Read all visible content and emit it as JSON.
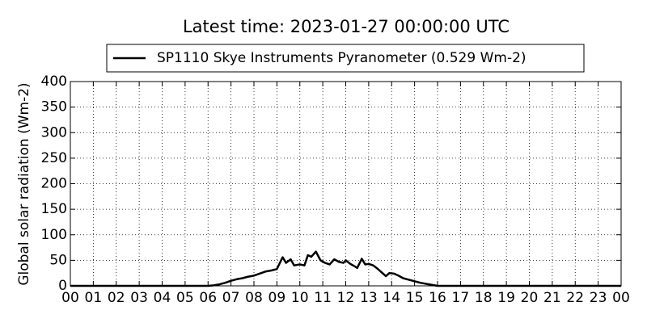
{
  "chart_data": {
    "type": "line",
    "title": "Latest time: 2023-01-27 00:00:00 UTC",
    "y_label": "Global solar radiation (Wm-2)",
    "legend_position": "upper center",
    "grid": true,
    "xlim": [
      0,
      24
    ],
    "xticks": [
      {
        "value": 0,
        "label": "00"
      },
      {
        "value": 1,
        "label": "01"
      },
      {
        "value": 2,
        "label": "02"
      },
      {
        "value": 3,
        "label": "03"
      },
      {
        "value": 4,
        "label": "04"
      },
      {
        "value": 5,
        "label": "05"
      },
      {
        "value": 6,
        "label": "06"
      },
      {
        "value": 7,
        "label": "07"
      },
      {
        "value": 8,
        "label": "08"
      },
      {
        "value": 9,
        "label": "09"
      },
      10,
      11,
      12,
      13,
      14,
      15,
      16,
      17,
      18,
      19,
      20,
      21,
      22,
      23,
      {
        "value": 24,
        "label": "00"
      }
    ],
    "ylim": [
      0,
      400
    ],
    "yticks": [
      0,
      50,
      100,
      150,
      200,
      250,
      300,
      350,
      400
    ],
    "x": [
      0,
      6.0,
      6.25,
      6.5,
      6.75,
      7.0,
      7.25,
      7.5,
      7.75,
      8.0,
      8.25,
      8.5,
      8.75,
      9.0,
      9.25,
      9.4,
      9.6,
      9.75,
      10.0,
      10.2,
      10.35,
      10.5,
      10.7,
      10.9,
      11.1,
      11.3,
      11.5,
      11.7,
      11.9,
      12.0,
      12.2,
      12.4,
      12.5,
      12.7,
      12.85,
      13.0,
      13.2,
      13.4,
      13.6,
      13.75,
      13.9,
      14.1,
      14.3,
      14.5,
      14.75,
      15.0,
      15.25,
      15.5,
      15.75,
      16.0,
      24
    ],
    "series": [
      {
        "name": "SP1110 Skye Instruments Pyranometer (0.529 Wm-2)",
        "color": "#000000",
        "values": [
          0,
          0,
          1,
          3,
          6,
          10,
          13,
          15,
          18,
          20,
          24,
          28,
          30,
          33,
          56,
          45,
          52,
          40,
          42,
          40,
          60,
          57,
          67,
          50,
          45,
          42,
          52,
          47,
          45,
          50,
          43,
          38,
          35,
          53,
          42,
          43,
          40,
          33,
          25,
          19,
          25,
          24,
          20,
          15,
          12,
          9,
          6,
          4,
          2,
          0,
          0
        ]
      }
    ]
  }
}
